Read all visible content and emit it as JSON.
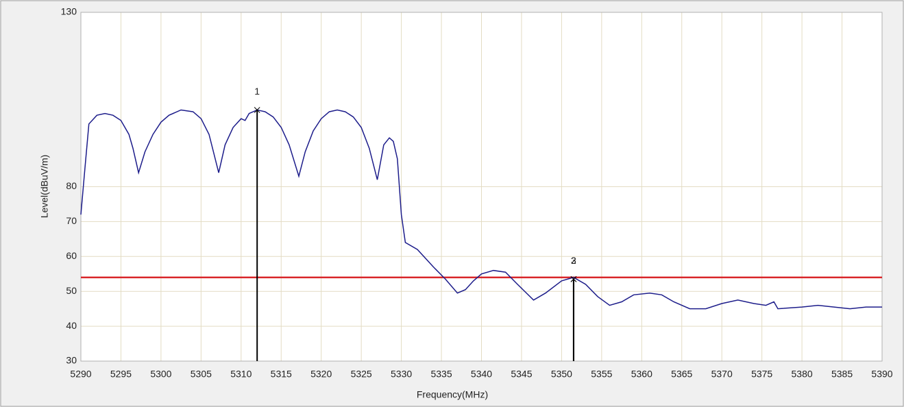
{
  "chart_data": {
    "type": "line",
    "xlabel": "Frequency(MHz)",
    "ylabel": "Level(dBuV/m)",
    "xlim": [
      5290,
      5390
    ],
    "ylim": [
      30,
      130
    ],
    "xticks": [
      5290,
      5295,
      5300,
      5305,
      5310,
      5315,
      5320,
      5325,
      5330,
      5335,
      5340,
      5345,
      5350,
      5355,
      5360,
      5365,
      5370,
      5375,
      5380,
      5385,
      5390
    ],
    "yticks": [
      30,
      40,
      50,
      60,
      70,
      80,
      130
    ],
    "grid": true,
    "limit_line": {
      "value": 54,
      "color": "#d9262a"
    },
    "series": [
      {
        "color": "#1c1c8a",
        "x": [
          5290,
          5290.5,
          5291,
          5292,
          5293,
          5294,
          5295,
          5296,
          5296.5,
          5297.2,
          5298,
          5299,
          5300,
          5301,
          5302.5,
          5304,
          5305,
          5306,
          5307.2,
          5308,
          5309,
          5310,
          5310.5,
          5311,
          5312,
          5313,
          5314,
          5315,
          5316,
          5317.2,
          5318,
          5319,
          5320,
          5321,
          5322,
          5323,
          5324,
          5325,
          5326,
          5327,
          5327.8,
          5328.5,
          5329,
          5329.5,
          5330,
          5330.5,
          5332,
          5334,
          5335.5,
          5337,
          5338,
          5339,
          5340,
          5341.5,
          5343,
          5344.5,
          5346.5,
          5348,
          5350,
          5351.5,
          5353,
          5354.5,
          5356,
          5357.5,
          5359,
          5361,
          5362.5,
          5364,
          5366,
          5368,
          5370,
          5372,
          5374,
          5375.5,
          5376.5,
          5377,
          5380,
          5382,
          5384,
          5386,
          5388,
          5390
        ],
        "values": [
          72,
          85,
          98,
          100.5,
          101,
          100.5,
          99,
          95,
          91,
          84,
          90,
          95,
          98.5,
          100.5,
          102,
          101.5,
          99.5,
          95,
          84,
          92,
          97,
          99.5,
          99,
          101,
          102,
          101.5,
          100,
          97,
          92,
          83,
          90,
          96,
          99.5,
          101.5,
          102,
          101.5,
          100,
          97,
          91,
          82,
          92,
          94,
          93,
          88,
          72,
          64,
          62,
          57,
          53.5,
          49.5,
          50.5,
          53,
          55,
          56,
          55.5,
          52,
          47.5,
          49.5,
          53,
          54,
          52,
          48.5,
          46,
          47,
          49,
          49.5,
          49,
          47,
          45,
          45,
          46.5,
          47.5,
          46.5,
          46,
          47,
          45,
          45.5,
          46,
          45.5,
          45,
          45.5,
          45.5
        ]
      }
    ],
    "markers": [
      {
        "label": "1",
        "x": 5312,
        "y": 102
      },
      {
        "label": "2",
        "x": 5351.5,
        "y": 53.5
      },
      {
        "label": "3",
        "x": 5351.5,
        "y": 53.5
      }
    ]
  }
}
